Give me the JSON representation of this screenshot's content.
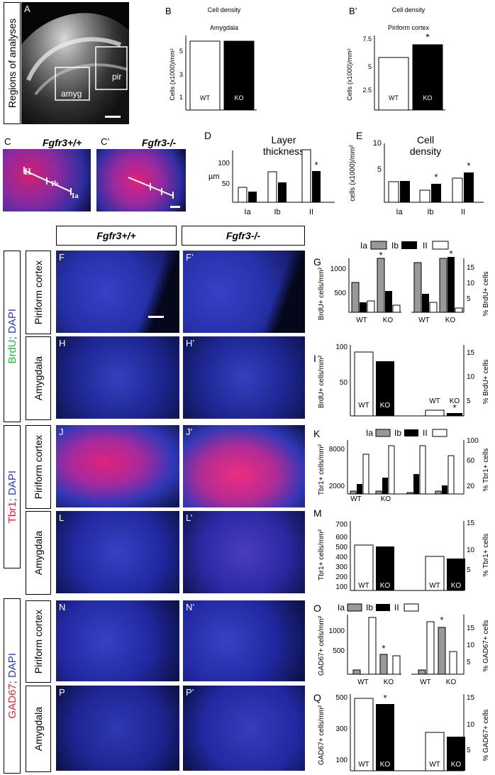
{
  "sidebar_regions": "Regions of analyses",
  "panels": {
    "A": {
      "label": "A",
      "amyg": "amyg",
      "pir": "pir"
    },
    "C": {
      "label": "C",
      "genotype": "Fgfr3+/+",
      "II": "II",
      "Ib": "Ib",
      "Ia": "Ia"
    },
    "Cp": {
      "label": "C’",
      "genotype": "Fgfr3-/-"
    },
    "F": "F",
    "Fp": "F’",
    "H": "H",
    "Hp": "H’",
    "J": "J",
    "Jp": "J’",
    "L": "L",
    "Lp": "L’",
    "N": "N",
    "Np": "N’",
    "P": "P",
    "Pp": "P’"
  },
  "column_headers": {
    "wt": "Fgfr3+/+",
    "ko": "Fgfr3-/-"
  },
  "row_labels": {
    "brdu_stain": "BrdU; DAPI",
    "brdu_label": "BrdU",
    "brdu_dapi": "; DAPI",
    "tbr1_label": "Tbr1",
    "tbr1_dapi": "; DAPI",
    "gad_label": "GAD67",
    "gad_dapi": "; DAPI",
    "piriform": "Piriform cortex",
    "amygdala": "Amygdala"
  },
  "colors": {
    "brdu": "#29b34a",
    "tbr1": "#e8233a",
    "gad": "#e8233a",
    "dapi": "#2f39c9"
  },
  "chart_data": [
    {
      "id": "B",
      "type": "bar",
      "title": "Cell density",
      "subtitle": "Amygdala",
      "ylabel": "Cells (x1000)/mm²",
      "categories": [
        "WT",
        "KO"
      ],
      "values": [
        5.8,
        5.8
      ],
      "ylim": [
        0,
        6.5
      ],
      "yticks": [
        1,
        3,
        5
      ]
    },
    {
      "id": "Bp",
      "type": "bar",
      "title": "Cell density",
      "subtitle": "Piriform cortex",
      "ylabel": "Cells (x1000)/mm²",
      "categories": [
        "WT",
        "KO"
      ],
      "values": [
        5.5,
        6.8
      ],
      "ylim": [
        0,
        8
      ],
      "yticks": [
        2.5,
        5,
        7.5
      ],
      "annotations": [
        "*"
      ]
    },
    {
      "id": "D",
      "type": "bar",
      "title": "Layer thickness",
      "ylabel": "µm",
      "categories": [
        "Ia",
        "Ib",
        "II"
      ],
      "series": [
        {
          "name": "WT",
          "values": [
            35,
            75,
            128
          ]
        },
        {
          "name": "KO",
          "values": [
            25,
            48,
            75
          ]
        }
      ],
      "ylim": [
        0,
        140
      ],
      "yticks": [
        50,
        100
      ],
      "annotations": [
        "*"
      ]
    },
    {
      "id": "E",
      "type": "bar",
      "title": "Cell density",
      "ylabel": "cells (x1000)/mm²",
      "categories": [
        "Ia",
        "Ib",
        "II"
      ],
      "series": [
        {
          "name": "WT",
          "values": [
            6,
            3.5,
            7
          ]
        },
        {
          "name": "KO",
          "values": [
            6.2,
            5.5,
            8.5
          ]
        }
      ],
      "ylim": [
        0,
        10
      ],
      "yticks": [
        5,
        10
      ],
      "annotations": [
        "*",
        "*"
      ]
    },
    {
      "id": "G",
      "type": "bar",
      "ylabel_left": "BrdU+ cells/mm²",
      "ylabel_right": "% BrdU+ cells",
      "legend": [
        "Ia",
        "Ib",
        "II"
      ],
      "categories": [
        "WT",
        "KO"
      ],
      "yticks_left": [
        500,
        1000
      ],
      "yticks_right": [
        5,
        10,
        15
      ],
      "annotations": [
        "*",
        "*"
      ]
    },
    {
      "id": "I",
      "type": "bar",
      "ylabel_left": "BrdU+ cells/mm²",
      "ylabel_right": "% BrdU+ cells",
      "categories": [
        "WT",
        "KO",
        "WT",
        "KO"
      ],
      "values": [
        90,
        78,
        2,
        1
      ],
      "yticks_left": [
        50,
        100
      ],
      "yticks_right": [
        5,
        10,
        15
      ],
      "annotations": [
        "*"
      ]
    },
    {
      "id": "K",
      "type": "bar",
      "ylabel_left": "Tbr1+ cells/mm²",
      "ylabel_right": "% Tbr1+ cells",
      "legend": [
        "Ia",
        "Ib",
        "II"
      ],
      "categories": [
        "WT",
        "KO"
      ],
      "yticks_left": [
        2000,
        8000
      ],
      "yticks_right": [
        20,
        60,
        100
      ]
    },
    {
      "id": "M",
      "type": "bar",
      "ylabel_left": "Tbr1+ cells/mm²",
      "ylabel_right": "% Tbr1+ cells",
      "categories": [
        "WT",
        "KO",
        "WT",
        "KO"
      ],
      "yticks_left": [
        100,
        200,
        300,
        400,
        500,
        600,
        700
      ],
      "yticks_right": [
        5,
        10,
        15
      ]
    },
    {
      "id": "O",
      "type": "bar",
      "ylabel_left": "GAD67+ cells/mm²",
      "ylabel_right": "% GAD67+ cells",
      "legend": [
        "Ia",
        "Ib",
        "II"
      ],
      "categories": [
        "WT",
        "KO"
      ],
      "yticks_left": [
        500,
        1000
      ],
      "yticks_right": [
        5,
        10,
        15
      ],
      "annotations": [
        "*",
        "*"
      ]
    },
    {
      "id": "Q",
      "type": "bar",
      "ylabel_left": "GAD67+ cells/mm²",
      "ylabel_right": "% GAD67+ cells",
      "categories": [
        "WT",
        "KO",
        "WT",
        "KO"
      ],
      "yticks_left": [
        100,
        300,
        500
      ],
      "yticks_right": [
        5,
        10,
        15
      ],
      "annotations": [
        "*"
      ]
    }
  ],
  "tick_text": {
    "B": [
      "1",
      "3",
      "5"
    ],
    "Bp": [
      "2.5",
      "5",
      "7.5"
    ],
    "D": [
      "50",
      "100"
    ],
    "E": [
      "5",
      "10"
    ],
    "G_l": [
      "500",
      "1000"
    ],
    "G_r": [
      "5",
      "10",
      "15"
    ],
    "I_l": [
      "50",
      "100"
    ],
    "I_r": [
      "5",
      "10",
      "15"
    ],
    "K_l": [
      "2000",
      "8000"
    ],
    "K_r": [
      "20",
      "60",
      "100"
    ],
    "M_l": [
      "100",
      "200",
      "300",
      "400",
      "500",
      "600",
      "700"
    ],
    "M_r": [
      "5",
      "10",
      "15"
    ],
    "O_l": [
      "500",
      "1000"
    ],
    "O_r": [
      "5",
      "10",
      "15"
    ],
    "Q_l": [
      "100",
      "300",
      "500"
    ],
    "Q_r": [
      "5",
      "10",
      "15"
    ]
  },
  "labels": {
    "B": "B",
    "Bp": "B’",
    "D": "D",
    "E": "E",
    "G": "G",
    "I": "I",
    "K": "K",
    "M": "M",
    "O": "O",
    "Q": "Q",
    "wt": "WT",
    "ko": "KO",
    "Ia": "Ia",
    "Ib": "Ib",
    "II": "II",
    "star": "*",
    "cell_density": "Cell density",
    "amygdala": "Amygdala",
    "piriform": "Piriform cortex",
    "ylab_B": "Cells (x1000)/mm²",
    "um": "µm",
    "layer": "Layer",
    "thickness": "thickness",
    "cell": "Cell",
    "density": "density",
    "ylab_E": "cells (x1000)/mm²",
    "G_l": "BrdU+ cells/mm²",
    "G_r": "% BrdU+ cells",
    "K_l": "Tbr1+ cells/mm²",
    "K_r": "% Tbr1+ cells",
    "O_l": "GAD67+ cells/mm²",
    "O_r": "% GAD67+ cells"
  }
}
